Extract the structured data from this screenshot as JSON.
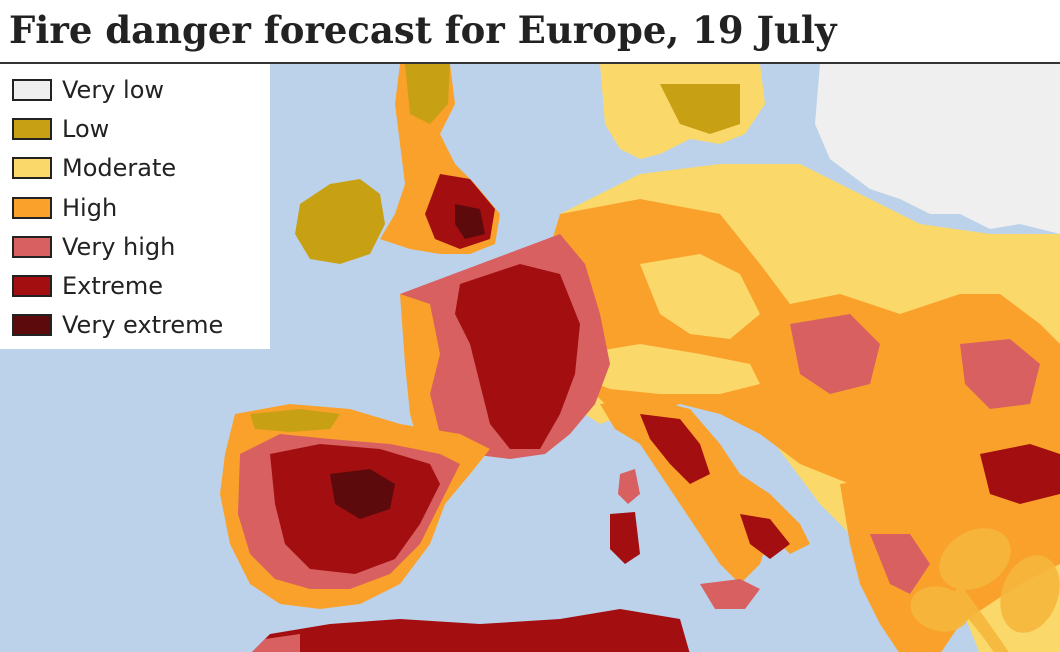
{
  "title": "Fire danger forecast for Europe, 19 July",
  "legend": {
    "items": [
      {
        "label": "Very low",
        "color": "#efefef"
      },
      {
        "label": "Low",
        "color": "#c8a014"
      },
      {
        "label": "Moderate",
        "color": "#fbd86a"
      },
      {
        "label": "High",
        "color": "#f9a12a"
      },
      {
        "label": "Very high",
        "color": "#d86060"
      },
      {
        "label": "Extreme",
        "color": "#a30f10"
      },
      {
        "label": "Very extreme",
        "color": "#5c0a0c"
      }
    ]
  },
  "map": {
    "sea_color": "#bcd2ea",
    "region": "Europe"
  },
  "logo": {
    "name": "logo-mark",
    "color": "#f6b73c"
  }
}
